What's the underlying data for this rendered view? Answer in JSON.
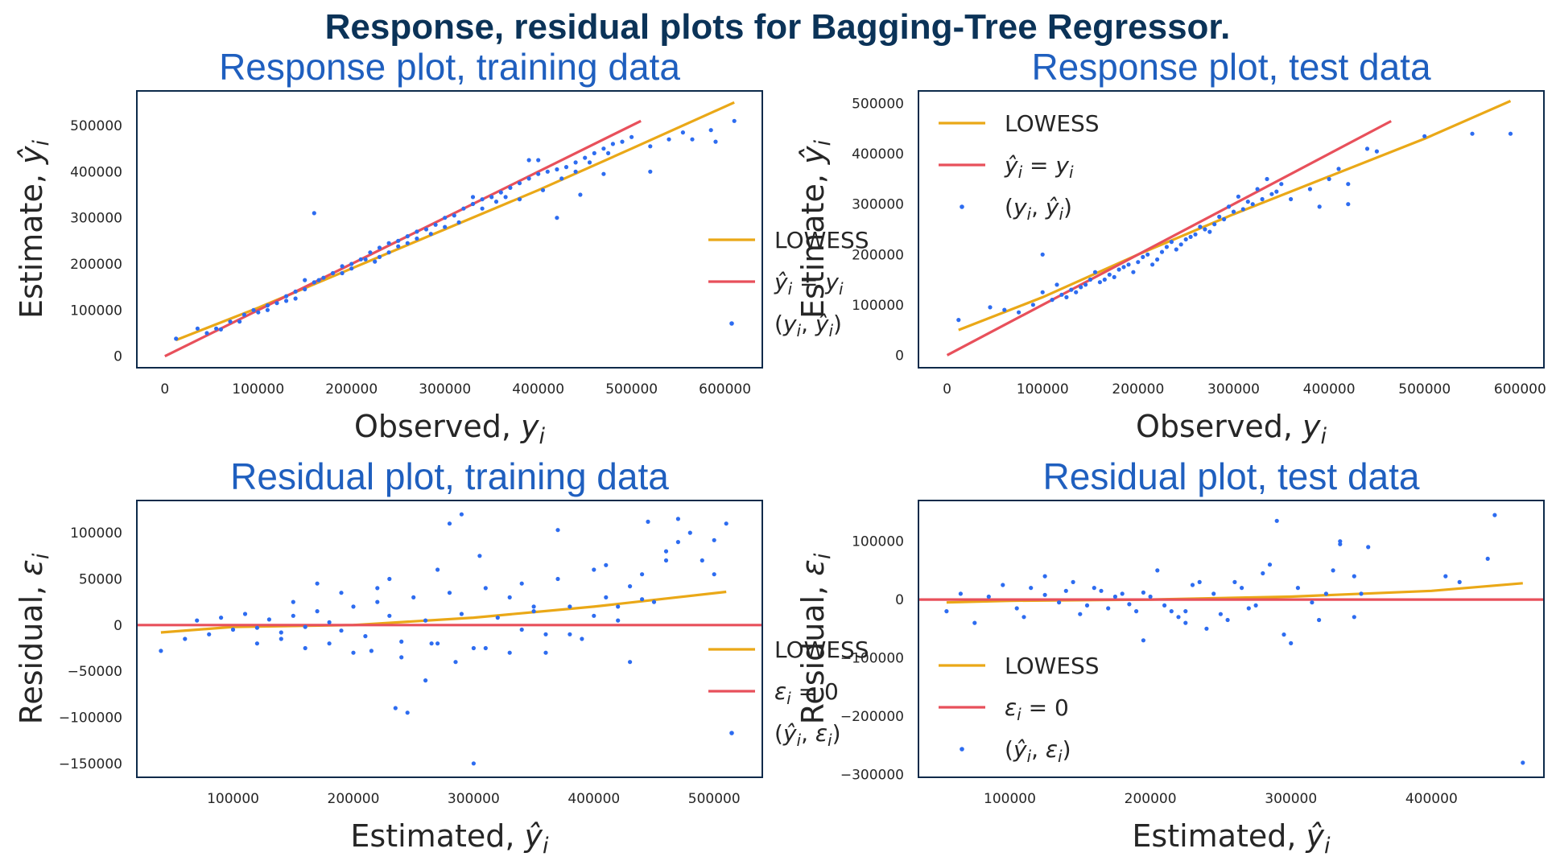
{
  "figure": {
    "suptitle": "Response, residual plots for Bagging-Tree Regressor."
  },
  "colors": {
    "points": "#2d6cf0",
    "lowess": "#eaa817",
    "identity": "#e8505b",
    "frame": "#0d2a4a",
    "title": "#1f5fbf",
    "suptitle": "#0b3358"
  },
  "chart_data": [
    {
      "id": "response_train",
      "type": "scatter",
      "title": "Response plot, training data",
      "xlabel": "Observed, y_i",
      "ylabel": "Estimate, ŷ_i",
      "xlim": [
        -30000,
        640000
      ],
      "ylim": [
        -25000,
        575000
      ],
      "xticks": [
        0,
        100000,
        200000,
        300000,
        400000,
        500000,
        600000
      ],
      "yticks": [
        0,
        100000,
        200000,
        300000,
        400000,
        500000
      ],
      "grid": false,
      "legend_position": "lower-right",
      "legend": [
        "LOWESS",
        "ŷ_i = y_i",
        "(y_i, ŷ_i)"
      ],
      "series": [
        {
          "name": "LOWESS",
          "kind": "line",
          "x": [
            12000,
            100000,
            200000,
            300000,
            400000,
            500000,
            610000
          ],
          "y": [
            35000,
            105000,
            190000,
            275000,
            360000,
            450000,
            550000
          ]
        },
        {
          "name": "ŷ_i = y_i",
          "kind": "line",
          "x": [
            0,
            510000
          ],
          "y": [
            0,
            510000
          ]
        },
        {
          "name": "(y_i, ŷ_i)",
          "kind": "scatter",
          "x": [
            12000,
            35000,
            55000,
            70000,
            85000,
            95000,
            110000,
            120000,
            130000,
            140000,
            150000,
            160000,
            165000,
            170000,
            180000,
            190000,
            200000,
            210000,
            220000,
            230000,
            240000,
            250000,
            260000,
            270000,
            280000,
            290000,
            300000,
            310000,
            320000,
            330000,
            340000,
            350000,
            360000,
            370000,
            380000,
            390000,
            400000,
            410000,
            420000,
            430000,
            440000,
            450000,
            460000,
            470000,
            480000,
            490000,
            500000,
            520000,
            540000,
            555000,
            565000,
            585000,
            590000,
            610000,
            160000,
            150000,
            260000,
            390000,
            400000,
            330000,
            420000,
            445000,
            470000,
            520000,
            230000,
            190000,
            140000,
            130000,
            110000,
            100000,
            80000,
            60000,
            45000,
            200000,
            215000,
            225000,
            240000,
            250000,
            270000,
            285000,
            300000,
            315000,
            340000,
            355000,
            365000,
            380000,
            405000,
            425000,
            440000,
            455000,
            475000
          ],
          "y": [
            38000,
            60000,
            60000,
            75000,
            90000,
            100000,
            110000,
            115000,
            130000,
            140000,
            145000,
            160000,
            165000,
            170000,
            180000,
            195000,
            200000,
            210000,
            225000,
            235000,
            245000,
            250000,
            260000,
            270000,
            275000,
            285000,
            300000,
            305000,
            320000,
            330000,
            340000,
            345000,
            355000,
            365000,
            375000,
            385000,
            395000,
            400000,
            405000,
            410000,
            420000,
            430000,
            440000,
            450000,
            460000,
            465000,
            475000,
            455000,
            470000,
            485000,
            470000,
            490000,
            465000,
            510000,
            310000,
            165000,
            245000,
            425000,
            425000,
            345000,
            300000,
            350000,
            395000,
            400000,
            215000,
            180000,
            125000,
            120000,
            100000,
            95000,
            75000,
            58000,
            50000,
            190000,
            210000,
            205000,
            225000,
            238000,
            255000,
            265000,
            280000,
            290000,
            320000,
            335000,
            345000,
            340000,
            360000,
            385000,
            400000,
            420000,
            440000
          ]
        }
      ]
    },
    {
      "id": "response_test",
      "type": "scatter",
      "title": "Response plot, test data",
      "xlabel": "Observed, y_i",
      "ylabel": "Estimate, ŷ_i",
      "xlim": [
        -30000,
        625000
      ],
      "ylim": [
        -25000,
        525000
      ],
      "xticks": [
        0,
        100000,
        200000,
        300000,
        400000,
        500000,
        600000
      ],
      "yticks": [
        0,
        100000,
        200000,
        300000,
        400000,
        500000
      ],
      "grid": false,
      "legend_position": "upper-left",
      "legend": [
        "LOWESS",
        "ŷ_i = y_i",
        "(y_i, ŷ_i)"
      ],
      "series": [
        {
          "name": "LOWESS",
          "kind": "line",
          "x": [
            12000,
            100000,
            200000,
            300000,
            400000,
            500000,
            590000
          ],
          "y": [
            50000,
            115000,
            200000,
            280000,
            355000,
            430000,
            505000
          ]
        },
        {
          "name": "ŷ_i = y_i",
          "kind": "line",
          "x": [
            0,
            465000
          ],
          "y": [
            0,
            465000
          ]
        },
        {
          "name": "(y_i, ŷ_i)",
          "kind": "scatter",
          "x": [
            12000,
            45000,
            60000,
            75000,
            90000,
            100000,
            110000,
            115000,
            120000,
            130000,
            140000,
            150000,
            160000,
            170000,
            180000,
            190000,
            200000,
            210000,
            220000,
            230000,
            240000,
            250000,
            260000,
            270000,
            280000,
            290000,
            300000,
            310000,
            320000,
            330000,
            340000,
            350000,
            360000,
            380000,
            400000,
            410000,
            420000,
            440000,
            450000,
            500000,
            550000,
            590000,
            100000,
            125000,
            135000,
            145000,
            155000,
            165000,
            175000,
            185000,
            195000,
            205000,
            215000,
            225000,
            235000,
            245000,
            255000,
            265000,
            275000,
            285000,
            295000,
            305000,
            315000,
            325000,
            335000,
            345000,
            390000,
            420000
          ],
          "y": [
            70000,
            95000,
            90000,
            85000,
            100000,
            125000,
            110000,
            140000,
            120000,
            130000,
            135000,
            150000,
            145000,
            160000,
            170000,
            180000,
            185000,
            200000,
            190000,
            215000,
            210000,
            230000,
            240000,
            250000,
            260000,
            270000,
            285000,
            290000,
            300000,
            310000,
            320000,
            340000,
            310000,
            330000,
            350000,
            370000,
            340000,
            410000,
            405000,
            435000,
            440000,
            440000,
            200000,
            115000,
            125000,
            140000,
            165000,
            150000,
            155000,
            175000,
            165000,
            195000,
            180000,
            205000,
            225000,
            220000,
            235000,
            255000,
            245000,
            275000,
            295000,
            315000,
            305000,
            330000,
            350000,
            325000,
            295000,
            300000
          ]
        }
      ]
    },
    {
      "id": "residual_train",
      "type": "scatter",
      "title": "Residual plot, training data",
      "xlabel": "Estimated, ŷ_i",
      "ylabel": "Residual, ε_i",
      "xlim": [
        20000,
        540000
      ],
      "ylim": [
        -165000,
        135000
      ],
      "xticks": [
        100000,
        200000,
        300000,
        400000,
        500000
      ],
      "yticks": [
        -150000,
        -100000,
        -50000,
        0,
        50000,
        100000
      ],
      "grid": false,
      "legend_position": "lower-right",
      "legend": [
        "LOWESS",
        "ε_i = 0",
        "(ŷ_i, ε_i)"
      ],
      "series": [
        {
          "name": "LOWESS",
          "kind": "line",
          "x": [
            40000,
            100000,
            200000,
            300000,
            400000,
            510000
          ],
          "y": [
            -8000,
            -2000,
            0,
            8000,
            20000,
            36000
          ]
        },
        {
          "name": "ε_i = 0",
          "kind": "line",
          "x": [
            20000,
            540000
          ],
          "y": [
            0,
            0
          ]
        },
        {
          "name": "(ŷ_i, ε_i)",
          "kind": "scatter",
          "x": [
            40000,
            60000,
            70000,
            80000,
            90000,
            100000,
            110000,
            120000,
            130000,
            140000,
            150000,
            160000,
            170000,
            180000,
            190000,
            200000,
            210000,
            220000,
            230000,
            240000,
            250000,
            260000,
            270000,
            280000,
            290000,
            300000,
            310000,
            320000,
            330000,
            340000,
            350000,
            360000,
            370000,
            380000,
            390000,
            400000,
            410000,
            420000,
            430000,
            440000,
            450000,
            460000,
            470000,
            480000,
            490000,
            500000,
            510000,
            280000,
            290000,
            300000,
            235000,
            245000,
            305000,
            220000,
            260000,
            370000,
            445000,
            470000,
            500000,
            150000,
            170000,
            190000,
            230000,
            270000,
            330000,
            350000,
            410000,
            430000,
            460000,
            120000,
            140000,
            160000,
            180000,
            200000,
            215000,
            240000,
            265000,
            285000,
            310000,
            340000,
            360000,
            380000,
            400000,
            420000,
            440000
          ],
          "y": [
            -28000,
            -15000,
            5000,
            -10000,
            8000,
            -5000,
            12000,
            -3000,
            6000,
            -8000,
            10000,
            -2000,
            15000,
            3000,
            -6000,
            20000,
            -12000,
            25000,
            10000,
            -18000,
            30000,
            5000,
            -20000,
            35000,
            12000,
            -25000,
            40000,
            8000,
            -30000,
            45000,
            15000,
            -10000,
            50000,
            20000,
            -15000,
            60000,
            30000,
            5000,
            -40000,
            55000,
            25000,
            70000,
            115000,
            100000,
            70000,
            55000,
            110000,
            110000,
            120000,
            -150000,
            -90000,
            -95000,
            75000,
            40000,
            -60000,
            103000,
            112000,
            90000,
            92000,
            25000,
            45000,
            35000,
            50000,
            60000,
            30000,
            20000,
            65000,
            42000,
            80000,
            -20000,
            -15000,
            -25000,
            -20000,
            -30000,
            -28000,
            -35000,
            -20000,
            -40000,
            -25000,
            -5000,
            -30000,
            -10000,
            10000,
            20000,
            28000
          ]
        }
      ]
    },
    {
      "id": "residual_test",
      "type": "scatter",
      "title": "Residual plot, test data",
      "xlabel": "Estimated, ŷ_i",
      "ylabel": "Residual, ε_i",
      "xlim": [
        35000,
        480000
      ],
      "ylim": [
        -305000,
        170000
      ],
      "xticks": [
        100000,
        200000,
        300000,
        400000
      ],
      "yticks": [
        -300000,
        -200000,
        -100000,
        0,
        100000
      ],
      "grid": false,
      "legend_position": "lower-left",
      "legend": [
        "LOWESS",
        "ε_i = 0",
        "(ŷ_i, ε_i)"
      ],
      "series": [
        {
          "name": "LOWESS",
          "kind": "line",
          "x": [
            55000,
            100000,
            200000,
            300000,
            400000,
            465000
          ],
          "y": [
            -5000,
            -2000,
            0,
            5000,
            15000,
            28000
          ]
        },
        {
          "name": "ε_i = 0",
          "kind": "line",
          "x": [
            35000,
            480000
          ],
          "y": [
            0,
            0
          ]
        },
        {
          "name": "(ŷ_i, ε_i)",
          "kind": "scatter",
          "x": [
            55000,
            65000,
            75000,
            85000,
            95000,
            105000,
            115000,
            125000,
            135000,
            145000,
            155000,
            165000,
            175000,
            185000,
            195000,
            205000,
            215000,
            225000,
            235000,
            245000,
            255000,
            265000,
            275000,
            285000,
            295000,
            305000,
            315000,
            325000,
            335000,
            345000,
            355000,
            410000,
            420000,
            440000,
            445000,
            465000,
            290000,
            335000,
            345000,
            300000,
            225000,
            240000,
            195000,
            125000,
            110000,
            140000,
            150000,
            160000,
            170000,
            180000,
            190000,
            200000,
            210000,
            220000,
            230000,
            250000,
            260000,
            270000,
            280000,
            320000,
            330000,
            350000
          ],
          "y": [
            -20000,
            10000,
            -40000,
            5000,
            25000,
            -15000,
            20000,
            8000,
            -5000,
            30000,
            -10000,
            15000,
            5000,
            -8000,
            12000,
            50000,
            -20000,
            -40000,
            30000,
            10000,
            -35000,
            20000,
            -10000,
            60000,
            -60000,
            20000,
            -5000,
            10000,
            100000,
            40000,
            90000,
            40000,
            30000,
            70000,
            145000,
            -280000,
            135000,
            95000,
            -30000,
            -75000,
            -20000,
            -50000,
            -70000,
            40000,
            -30000,
            15000,
            -25000,
            20000,
            -15000,
            10000,
            -20000,
            5000,
            -10000,
            -30000,
            25000,
            -25000,
            30000,
            -15000,
            45000,
            -35000,
            50000,
            10000
          ]
        }
      ]
    }
  ]
}
